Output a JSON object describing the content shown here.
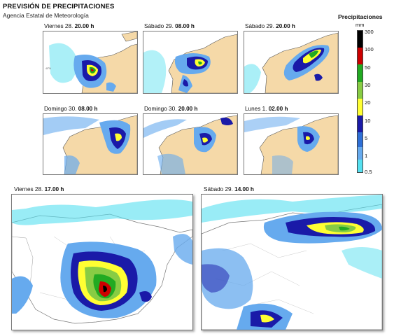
{
  "header": {
    "title": "PREVISIÓN DE PRECIPITACIONES",
    "subtitle": "Agencia Estatal de Meteorología"
  },
  "legend": {
    "title": "Precipitaciones",
    "unit": "mm",
    "levels": [
      "300",
      "100",
      "50",
      "30",
      "20",
      "10",
      "5",
      "1",
      "0.5"
    ],
    "colors": [
      "#000000",
      "#cc0000",
      "#22aa22",
      "#88cc44",
      "#ffff33",
      "#1a1aa8",
      "#2e6fd6",
      "#66aaee",
      "#55e0f0"
    ]
  },
  "small_maps": [
    {
      "day": "Viernes 28.",
      "time": "20.00 h"
    },
    {
      "day": "Sábado 29.",
      "time": "08.00 h"
    },
    {
      "day": "Sábado 29.",
      "time": "20.00 h"
    },
    {
      "day": "Domingo 30.",
      "time": "08.00 h"
    },
    {
      "day": "Domingo 30.",
      "time": "20.00 h"
    },
    {
      "day": "Lunes 1.",
      "time": "02.00 h"
    }
  ],
  "large_maps": [
    {
      "day": "Viernes 28.",
      "time": "17.00 h"
    },
    {
      "day": "Sábado 29.",
      "time": "14.00 h"
    }
  ]
}
